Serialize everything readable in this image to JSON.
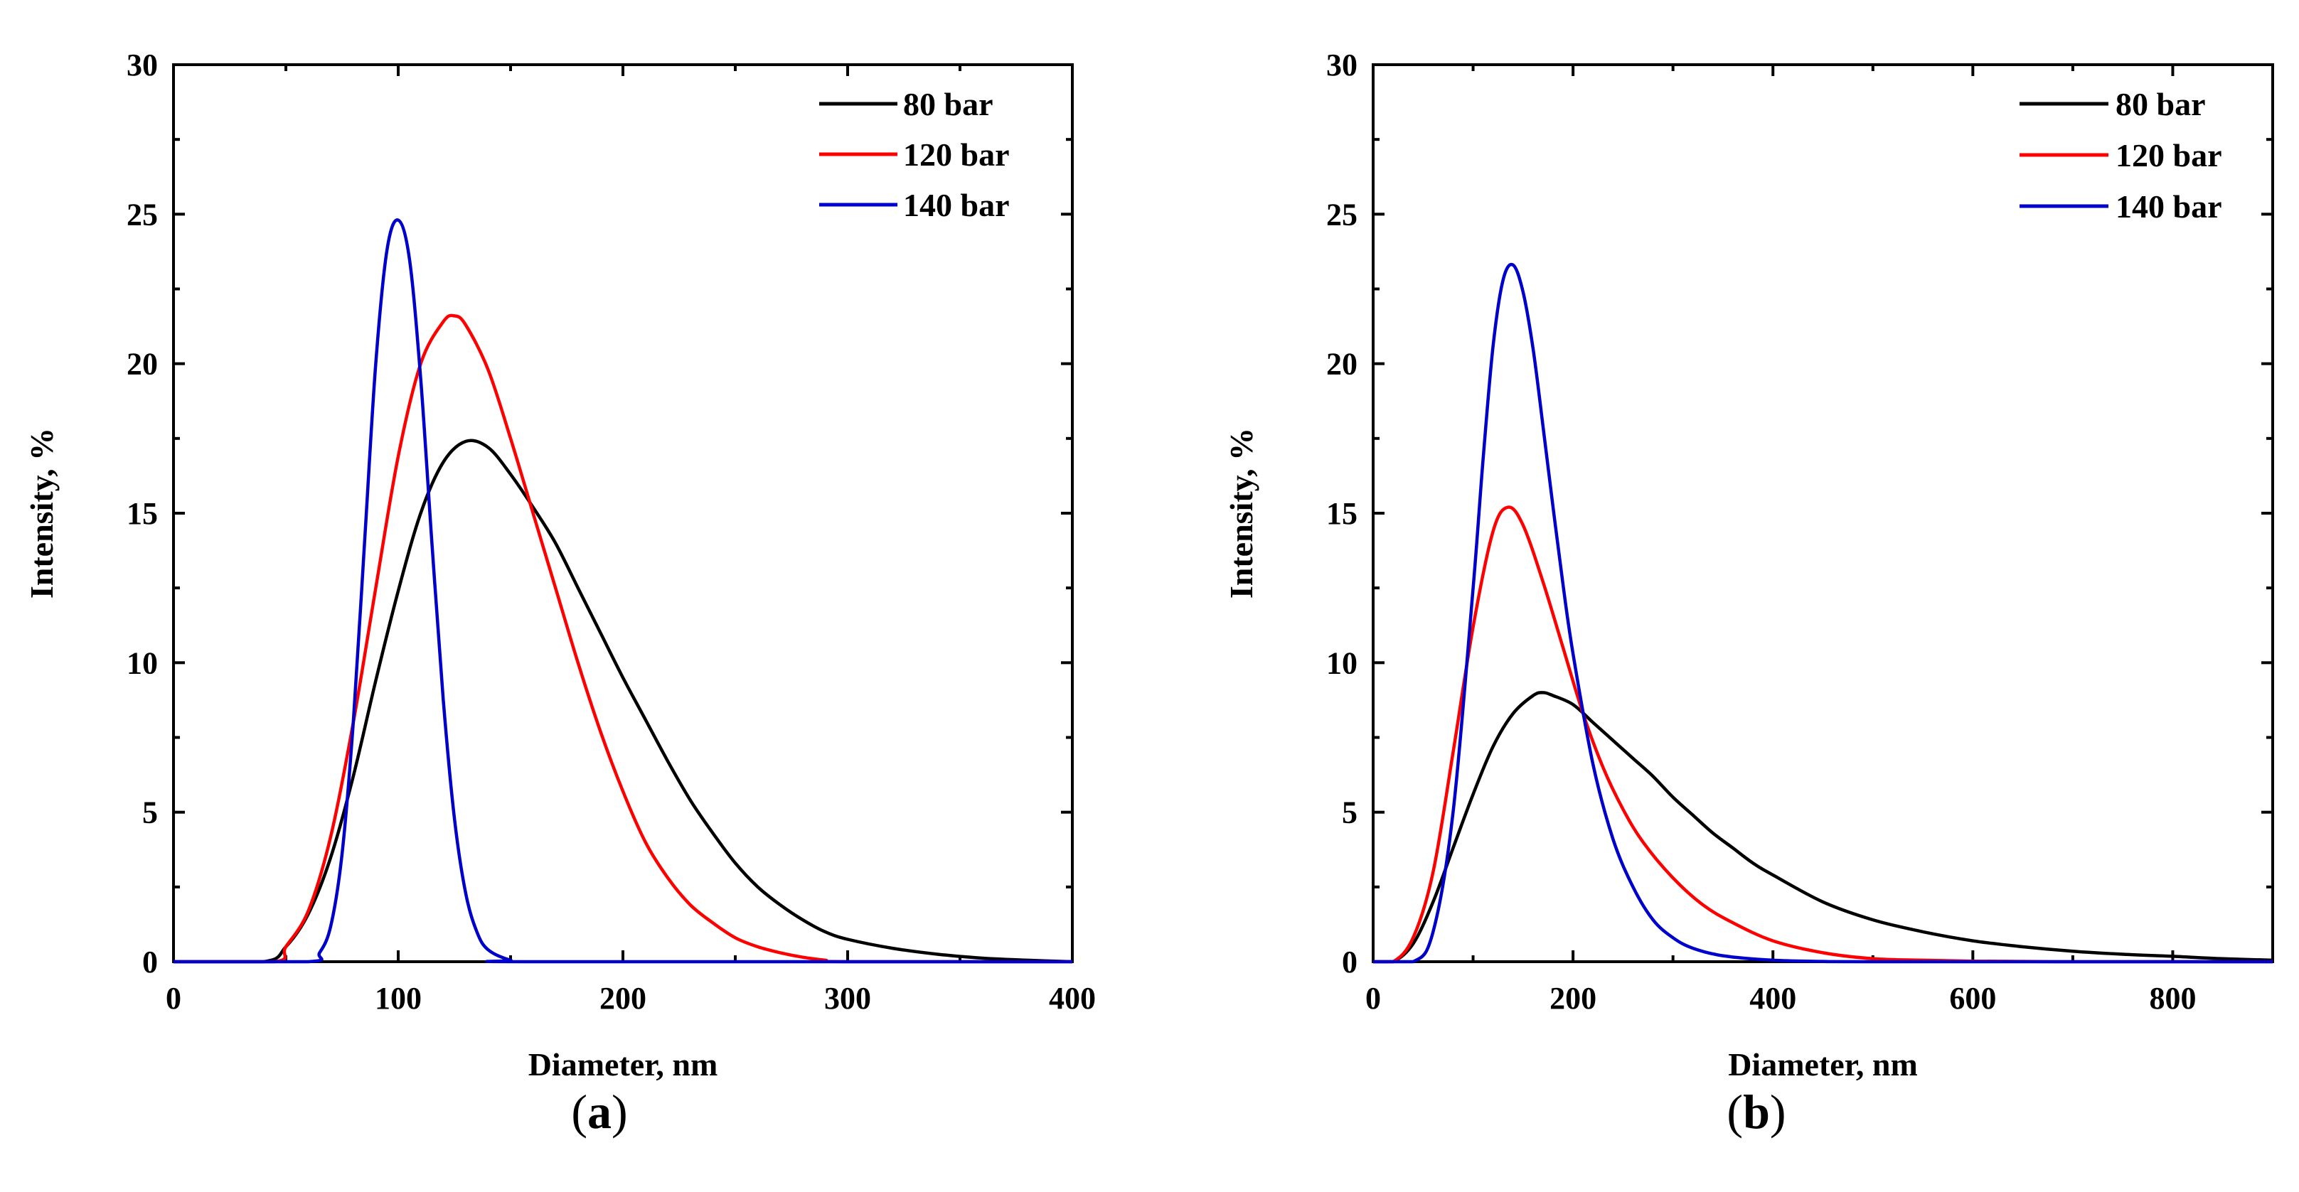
{
  "figure": {
    "panel_labels": [
      "a",
      "b"
    ]
  },
  "chart_data": [
    {
      "type": "line",
      "panel": "a",
      "xlabel": "Diameter, nm",
      "ylabel": "Intensity, %",
      "xlim": [
        0,
        400
      ],
      "ylim": [
        0,
        30
      ],
      "xticks": [
        0,
        100,
        200,
        300,
        400
      ],
      "yticks": [
        0,
        5,
        10,
        15,
        20,
        25,
        30
      ],
      "legend_position": "top-right",
      "series": [
        {
          "name": "80 bar",
          "color": "#000000",
          "x": [
            40,
            50,
            60,
            70,
            80,
            90,
            100,
            110,
            120,
            130,
            140,
            150,
            160,
            170,
            180,
            190,
            200,
            210,
            220,
            230,
            240,
            250,
            260,
            270,
            280,
            290,
            300,
            320,
            340,
            360,
            380,
            400
          ],
          "y": [
            0,
            0.5,
            1.6,
            3.5,
            6.2,
            9.4,
            12.4,
            15.0,
            16.7,
            17.4,
            17.2,
            16.3,
            15.2,
            14.0,
            12.5,
            11.0,
            9.5,
            8.1,
            6.7,
            5.4,
            4.3,
            3.3,
            2.5,
            1.9,
            1.4,
            1.0,
            0.75,
            0.45,
            0.25,
            0.12,
            0.05,
            0
          ]
        },
        {
          "name": "120 bar",
          "color": "#ff0000",
          "x": [
            45,
            50,
            60,
            70,
            80,
            90,
            100,
            110,
            120,
            125,
            130,
            140,
            150,
            160,
            170,
            180,
            190,
            200,
            210,
            220,
            230,
            240,
            250,
            260,
            270,
            280,
            290,
            300
          ],
          "y": [
            0,
            0.5,
            1.7,
            4.2,
            8.0,
            12.5,
            16.9,
            20.0,
            21.4,
            21.6,
            21.3,
            19.8,
            17.5,
            15.0,
            12.5,
            10.0,
            7.7,
            5.7,
            4.0,
            2.8,
            1.9,
            1.3,
            0.8,
            0.5,
            0.3,
            0.15,
            0.05,
            0
          ]
        },
        {
          "name": "140 bar",
          "color": "#0000cc",
          "x": [
            60,
            65,
            70,
            75,
            80,
            85,
            90,
            95,
            100,
            105,
            110,
            115,
            120,
            125,
            130,
            135,
            140,
            150,
            160
          ],
          "y": [
            0,
            0.3,
            1.2,
            3.6,
            8.0,
            14.0,
            20.0,
            23.8,
            24.8,
            23.5,
            19.5,
            14.0,
            8.8,
            4.8,
            2.3,
            1.0,
            0.4,
            0.05,
            0
          ]
        }
      ]
    },
    {
      "type": "line",
      "panel": "b",
      "xlabel": "Diameter, nm",
      "ylabel": "Intensity, %",
      "xlim": [
        0,
        900
      ],
      "ylim": [
        0,
        30
      ],
      "xticks": [
        0,
        200,
        400,
        600,
        800
      ],
      "yticks": [
        0,
        5,
        10,
        15,
        20,
        25,
        30
      ],
      "legend_position": "top-right",
      "series": [
        {
          "name": "80 bar",
          "color": "#000000",
          "x": [
            20,
            40,
            60,
            80,
            100,
            120,
            140,
            160,
            170,
            180,
            200,
            220,
            240,
            260,
            280,
            300,
            320,
            340,
            360,
            380,
            400,
            450,
            500,
            550,
            600,
            650,
            700,
            750,
            800,
            850,
            900
          ],
          "y": [
            0,
            0.6,
            2.0,
            3.8,
            5.6,
            7.2,
            8.3,
            8.9,
            9.0,
            8.9,
            8.6,
            8.0,
            7.4,
            6.8,
            6.2,
            5.5,
            4.9,
            4.3,
            3.8,
            3.3,
            2.9,
            2.0,
            1.4,
            1.0,
            0.7,
            0.5,
            0.35,
            0.25,
            0.18,
            0.1,
            0.05
          ]
        },
        {
          "name": "120 bar",
          "color": "#ff0000",
          "x": [
            20,
            40,
            60,
            80,
            100,
            120,
            135,
            150,
            170,
            190,
            210,
            230,
            250,
            270,
            300,
            330,
            360,
            400,
            450,
            500,
            550,
            600,
            650,
            700
          ],
          "y": [
            0,
            0.8,
            3.0,
            7.0,
            11.2,
            14.4,
            15.2,
            14.6,
            12.7,
            10.5,
            8.3,
            6.5,
            5.1,
            4.0,
            2.8,
            1.9,
            1.3,
            0.7,
            0.3,
            0.1,
            0.05,
            0.02,
            0.01,
            0
          ]
        },
        {
          "name": "140 bar",
          "color": "#0000cc",
          "x": [
            40,
            60,
            80,
            100,
            110,
            120,
            130,
            140,
            150,
            160,
            170,
            180,
            190,
            200,
            220,
            240,
            260,
            280,
            300,
            320,
            350,
            400,
            450,
            500
          ],
          "y": [
            0,
            1.0,
            5.0,
            12.5,
            16.8,
            20.6,
            22.8,
            23.3,
            22.4,
            20.5,
            17.9,
            15.2,
            12.6,
            10.3,
            6.6,
            4.1,
            2.5,
            1.4,
            0.8,
            0.45,
            0.2,
            0.05,
            0.01,
            0
          ]
        }
      ]
    }
  ]
}
